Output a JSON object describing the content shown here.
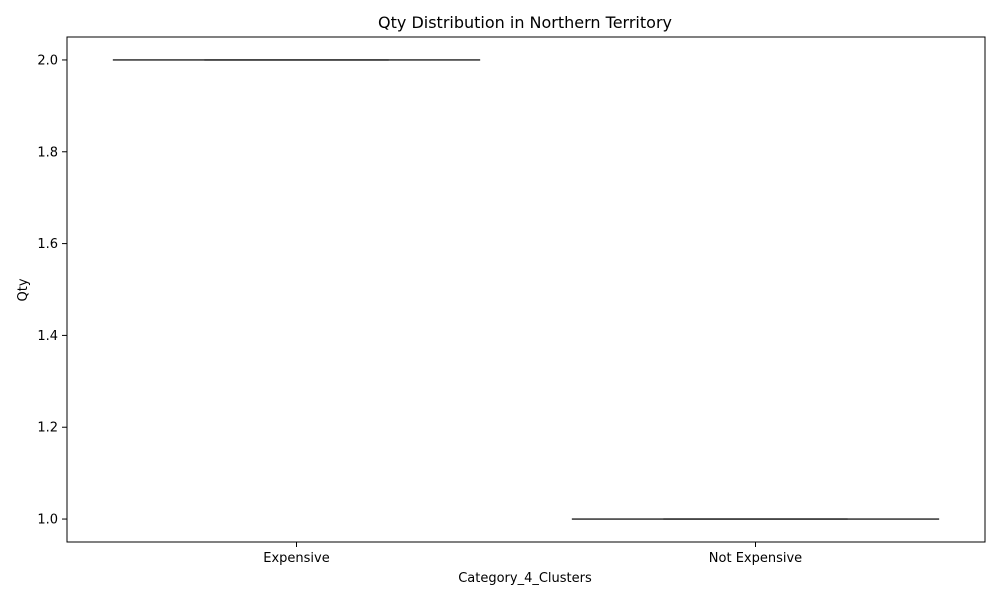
{
  "chart_data": {
    "type": "box",
    "title": "Qty Distribution in Northern Territory",
    "xlabel": "Category_4_Clusters",
    "ylabel": "Qty",
    "categories": [
      "Expensive",
      "Not Expensive"
    ],
    "boxes": [
      {
        "category": "Expensive",
        "min": 2.0,
        "q1": 2.0,
        "median": 2.0,
        "q3": 2.0,
        "max": 2.0
      },
      {
        "category": "Not Expensive",
        "min": 1.0,
        "q1": 1.0,
        "median": 1.0,
        "q3": 1.0,
        "max": 1.0
      }
    ],
    "ylim": [
      0.95,
      2.05
    ],
    "yticks": [
      1.0,
      1.2,
      1.4,
      1.6,
      1.8,
      2.0
    ],
    "ytick_labels": [
      "1.0",
      "1.2",
      "1.4",
      "1.6",
      "1.8",
      "2.0"
    ],
    "grid": false,
    "colors": {
      "box_line": "#3f3f3f",
      "axis": "#000000"
    }
  }
}
